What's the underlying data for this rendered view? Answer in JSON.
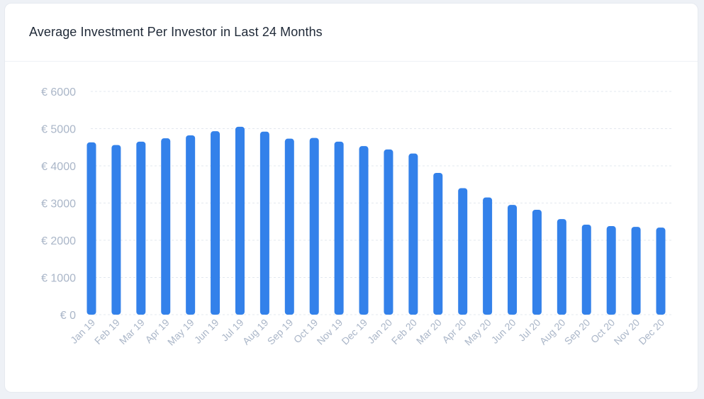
{
  "card": {
    "title": "Average Investment Per Investor in Last 24 Months"
  },
  "chart_data": {
    "type": "bar",
    "title": "Average Investment Per Investor in Last 24 Months",
    "xlabel": "",
    "ylabel": "",
    "ylim": [
      0,
      6000
    ],
    "yticks": [
      0,
      1000,
      2000,
      3000,
      4000,
      5000,
      6000
    ],
    "ytick_labels": [
      "€ 0",
      "€ 1000",
      "€ 2000",
      "€ 3000",
      "€ 4000",
      "€ 5000",
      "€ 6000"
    ],
    "grid": true,
    "bar_color": "#3381ea",
    "categories": [
      "Jan 19",
      "Feb 19",
      "Mar 19",
      "Apr 19",
      "May 19",
      "Jun 19",
      "Jul 19",
      "Aug 19",
      "Sep 19",
      "Oct 19",
      "Nov 19",
      "Dec 19",
      "Jan 20",
      "Feb 20",
      "Mar 20",
      "Apr 20",
      "May 20",
      "Jun 20",
      "Jul 20",
      "Aug 20",
      "Sep 20",
      "Oct 20",
      "Nov 20",
      "Dec 20"
    ],
    "values": [
      4630,
      4560,
      4650,
      4740,
      4820,
      4930,
      5050,
      4920,
      4730,
      4750,
      4650,
      4530,
      4440,
      4330,
      3810,
      3400,
      3150,
      2950,
      2820,
      2570,
      2420,
      2380,
      2360,
      2340
    ]
  }
}
